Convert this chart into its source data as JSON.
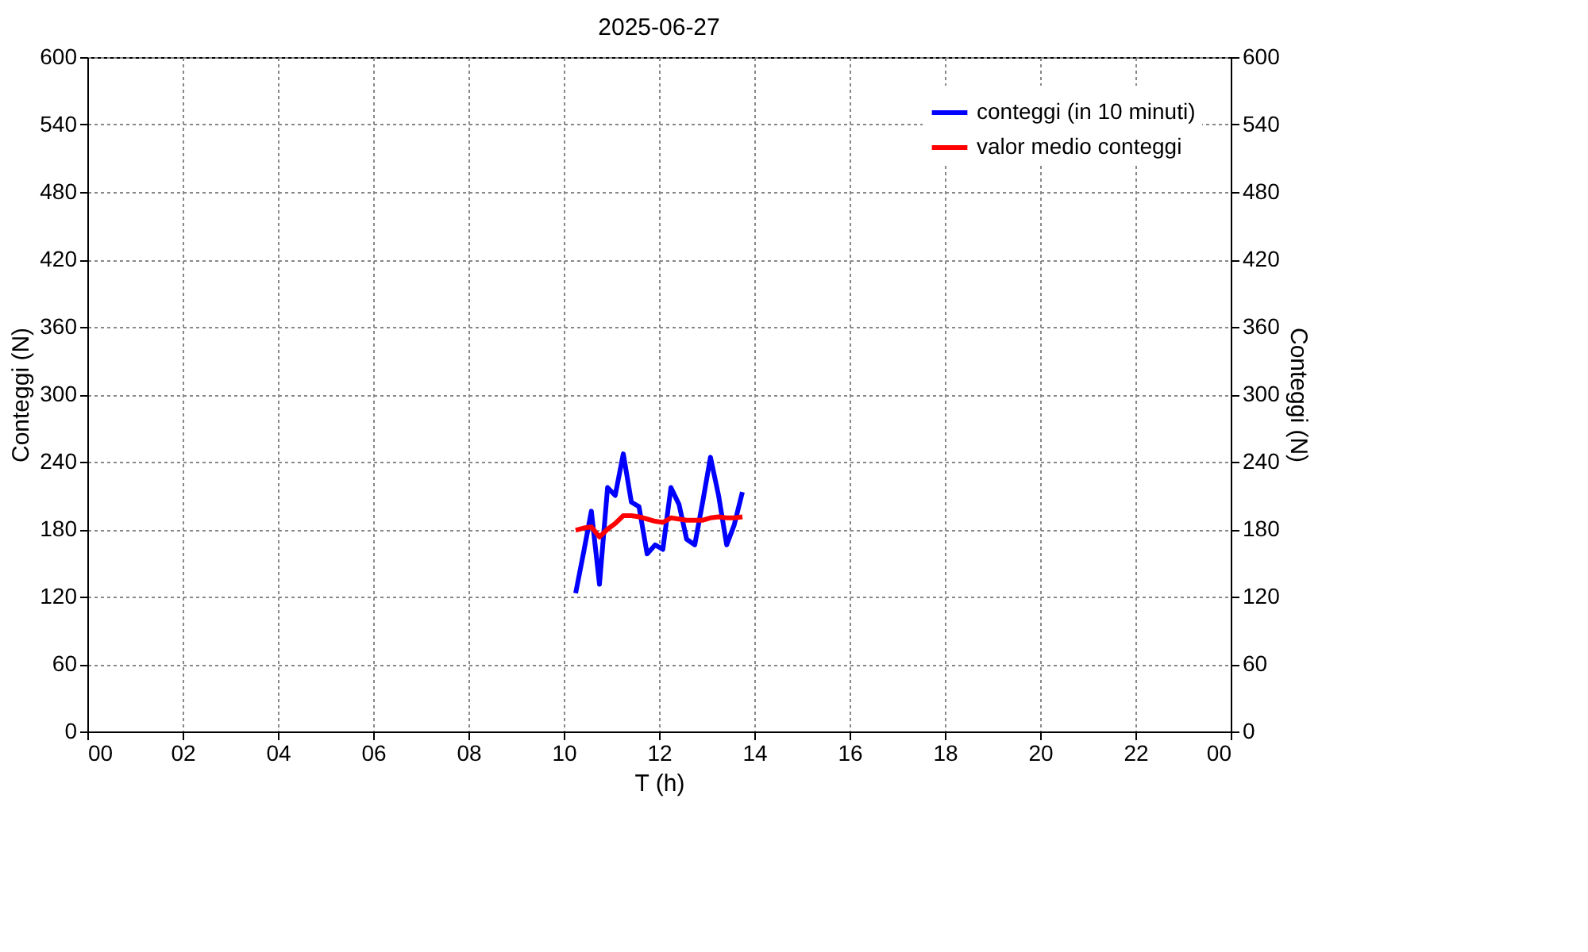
{
  "chart_data": {
    "type": "line",
    "title": "2025-06-27",
    "xlabel": "T (h)",
    "ylabel": "Conteggi (N)",
    "y2label": "Conteggi (N)",
    "x": [
      10.25,
      10.42,
      10.58,
      10.75,
      10.92,
      11.08,
      11.25,
      11.42,
      11.58,
      11.75,
      11.92,
      12.08,
      12.25,
      12.42,
      12.58,
      12.75,
      12.92,
      13.08,
      13.25,
      13.42,
      13.58,
      13.75
    ],
    "series": [
      {
        "name": "conteggi (in 10 minuti)",
        "color": "#0000ff",
        "values": [
          123,
          160,
          196,
          131,
          217,
          210,
          247,
          204,
          200,
          158,
          166,
          162,
          217,
          202,
          171,
          166,
          205,
          244,
          210,
          166,
          184,
          213
        ]
      },
      {
        "name": "valor medio conteggi",
        "color": "#ff0000",
        "values": [
          179,
          181,
          182,
          173,
          180,
          185,
          192,
          192,
          191,
          189,
          187,
          186,
          190,
          189,
          188,
          188,
          188,
          190,
          191,
          190,
          190,
          191
        ]
      }
    ],
    "xlim": [
      0,
      24
    ],
    "xticks": [
      {
        "value": 0,
        "label": "00"
      },
      {
        "value": 2,
        "label": "02"
      },
      {
        "value": 4,
        "label": "04"
      },
      {
        "value": 6,
        "label": "06"
      },
      {
        "value": 8,
        "label": "08"
      },
      {
        "value": 10,
        "label": "10"
      },
      {
        "value": 12,
        "label": "12"
      },
      {
        "value": 14,
        "label": "14"
      },
      {
        "value": 16,
        "label": "16"
      },
      {
        "value": 18,
        "label": "18"
      },
      {
        "value": 20,
        "label": "20"
      },
      {
        "value": 22,
        "label": "22"
      },
      {
        "value": 24,
        "label": "00"
      }
    ],
    "ylim": [
      0,
      600
    ],
    "yticks": [
      0,
      60,
      120,
      180,
      240,
      300,
      360,
      420,
      480,
      540,
      600
    ],
    "y2lim": [
      0,
      600
    ],
    "y2ticks": [
      0,
      60,
      120,
      180,
      240,
      300,
      360,
      420,
      480,
      540,
      600
    ],
    "grid": true,
    "legend": "top right",
    "line_style": "solid"
  }
}
